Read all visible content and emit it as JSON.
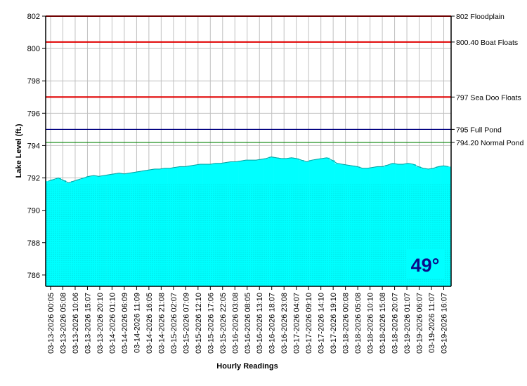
{
  "chart_data": {
    "type": "area",
    "xlabel": "Hourly Readings",
    "ylabel": "Lake Level (ft.)",
    "ylim": [
      785.3,
      802
    ],
    "yticks": [
      786,
      788,
      790,
      792,
      794,
      796,
      798,
      800,
      802
    ],
    "grid": true,
    "area_color": "#00ffff",
    "x_tick_labels": [
      "03-13-2026 00:05",
      "03-13-2026 05:08",
      "03-13-2026 10:06",
      "03-13-2026 15:07",
      "03-13-2026 20:10",
      "03-14-2026 01:10",
      "03-14-2026 06:09",
      "03-14-2026 11:09",
      "03-14-2026 16:05",
      "03-14-2026 21:08",
      "03-15-2026 02:07",
      "03-15-2026 07:09",
      "03-15-2026 12:10",
      "03-15-2026 17:06",
      "03-15-2026 22:05",
      "03-16-2026 03:08",
      "03-16-2026 08:05",
      "03-16-2026 13:10",
      "03-16-2026 18:07",
      "03-16-2026 23:08",
      "03-17-2026 04:07",
      "03-17-2026 09:10",
      "03-17-2026 14:10",
      "03-17-2026 19:10",
      "03-18-2026 00:08",
      "03-18-2026 05:08",
      "03-18-2026 10:10",
      "03-18-2026 15:08",
      "03-18-2026 20:07",
      "03-19-2026 01:07",
      "03-19-2026 06:07",
      "03-19-2026 11:07",
      "03-19-2026 16:07"
    ],
    "values": [
      791.8,
      791.9,
      792.0,
      791.85,
      791.7,
      791.8,
      791.9,
      792.0,
      792.1,
      792.15,
      792.1,
      792.15,
      792.2,
      792.25,
      792.3,
      792.25,
      792.3,
      792.35,
      792.4,
      792.45,
      792.5,
      792.55,
      792.55,
      792.6,
      792.6,
      792.65,
      792.7,
      792.7,
      792.75,
      792.8,
      792.85,
      792.85,
      792.85,
      792.9,
      792.9,
      792.95,
      793.0,
      793.0,
      793.05,
      793.1,
      793.1,
      793.1,
      793.15,
      793.2,
      793.3,
      793.25,
      793.2,
      793.2,
      793.25,
      793.2,
      793.1,
      793.0,
      793.1,
      793.15,
      793.2,
      793.25,
      793.1,
      792.9,
      792.85,
      792.8,
      792.75,
      792.7,
      792.6,
      792.6,
      792.65,
      792.7,
      792.7,
      792.8,
      792.9,
      792.85,
      792.85,
      792.9,
      792.85,
      792.7,
      792.6,
      792.55,
      792.6,
      792.7,
      792.75,
      792.7
    ],
    "reference_lines": [
      {
        "value": 802,
        "label": "802 Floodplain",
        "color": "#e00000"
      },
      {
        "value": 800.4,
        "label": "800.40 Boat Floats",
        "color": "#e00000"
      },
      {
        "value": 797,
        "label": "797 Sea Doo Floats",
        "color": "#e00000"
      },
      {
        "value": 795,
        "label": "795 Full Pond",
        "color": "#000080"
      },
      {
        "value": 794.2,
        "label": "794.20 Normal Pond",
        "color": "#008000"
      }
    ],
    "annotation": {
      "text": "49°",
      "background": "#00ffff",
      "color": "#0b0b8a"
    }
  }
}
